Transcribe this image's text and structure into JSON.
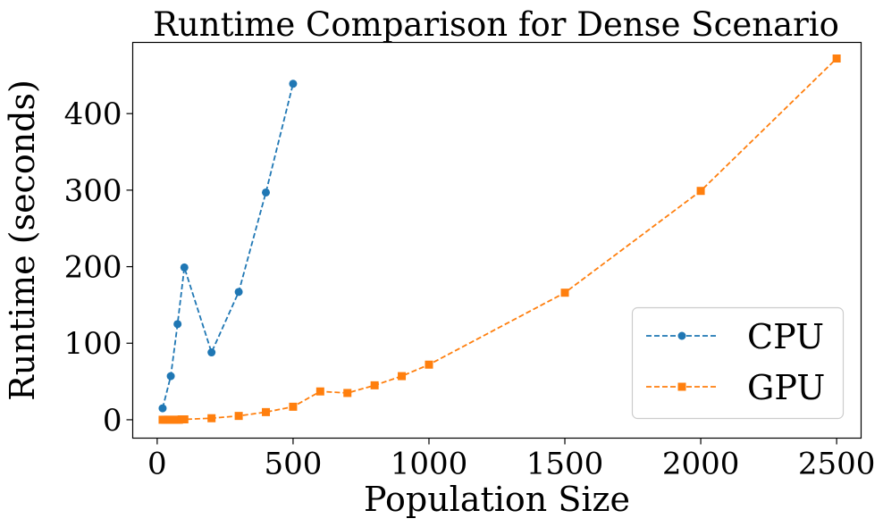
{
  "chart_data": {
    "type": "line",
    "title": "Runtime Comparison for Dense Scenario",
    "xlabel": "Population Size",
    "ylabel": "Runtime (seconds)",
    "xlim": [
      -90,
      2590
    ],
    "ylim": [
      -24,
      493
    ],
    "xticks": [
      0,
      500,
      1000,
      1500,
      2000,
      2500
    ],
    "yticks": [
      0,
      100,
      200,
      300,
      400
    ],
    "grid": false,
    "legend_position": "lower-right",
    "series": [
      {
        "name": "CPU",
        "color": "#1f77b4",
        "marker": "circle",
        "linestyle": "dashed",
        "x": [
          20,
          50,
          75,
          100,
          200,
          300,
          400,
          500
        ],
        "y": [
          15,
          57,
          125,
          199,
          88,
          167,
          297,
          439
        ]
      },
      {
        "name": "GPU",
        "color": "#ff7f0e",
        "marker": "square",
        "linestyle": "dashed",
        "x": [
          20,
          30,
          40,
          50,
          60,
          70,
          80,
          90,
          100,
          200,
          300,
          400,
          500,
          600,
          700,
          800,
          900,
          1000,
          1500,
          2000,
          2500
        ],
        "y": [
          0,
          0,
          0,
          0,
          0,
          0,
          0,
          0.5,
          0.5,
          2,
          5,
          10,
          17,
          37,
          35,
          45,
          57,
          72,
          166,
          299,
          472
        ]
      }
    ]
  }
}
